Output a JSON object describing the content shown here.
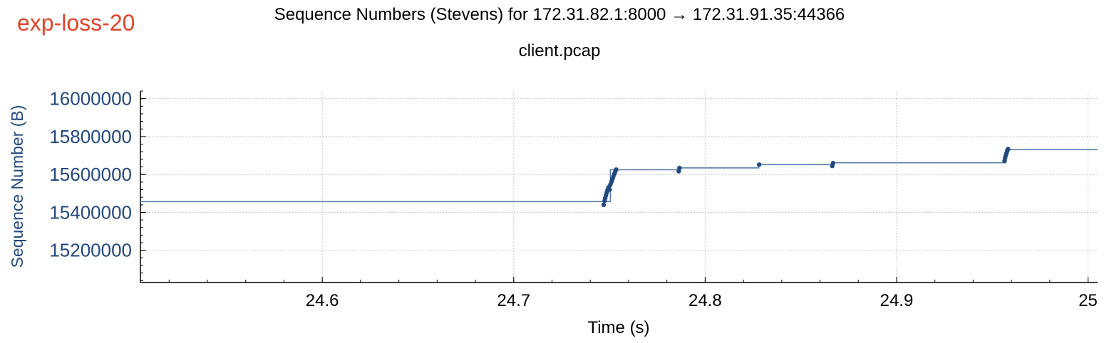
{
  "tag": "exp-loss-20",
  "chart_data": {
    "type": "scatter",
    "title": "Sequence Numbers (Stevens) for 172.31.82.1:8000 → 172.31.91.35:44366",
    "subtitle": "client.pcap",
    "xlabel": "Time (s)",
    "ylabel": "Sequence Number (B)",
    "xlim": [
      24.505,
      25.005
    ],
    "ylim": [
      15030000,
      16040000
    ],
    "x_ticks": [
      24.6,
      24.7,
      24.8,
      24.9,
      25
    ],
    "x_tick_labels": [
      "24.6",
      "24.7",
      "24.8",
      "24.9",
      "25"
    ],
    "y_ticks": [
      15200000,
      15400000,
      15600000,
      15800000,
      16000000
    ],
    "y_tick_labels": [
      "15200000",
      "15400000",
      "15600000",
      "15800000",
      "16000000"
    ],
    "grid": true,
    "colors": {
      "series": "#22497f",
      "step_line": "#5b7faf",
      "axis_text": "#22497f",
      "tag": "#e0442a",
      "grid": "#c8c8c8"
    },
    "step_line": [
      [
        24.505,
        15457000
      ],
      [
        24.7505,
        15457000
      ],
      [
        24.7505,
        15625000
      ],
      [
        24.7865,
        15625000
      ],
      [
        24.7865,
        15635000
      ],
      [
        24.828,
        15635000
      ],
      [
        24.828,
        15652000
      ],
      [
        24.8665,
        15652000
      ],
      [
        24.8665,
        15662000
      ],
      [
        24.957,
        15662000
      ],
      [
        24.957,
        15731000
      ],
      [
        25.005,
        15731000
      ]
    ],
    "points": [
      {
        "x": 24.747,
        "y": 15440000
      },
      {
        "x": 24.7475,
        "y": 15462000
      },
      {
        "x": 24.7478,
        "y": 15476000
      },
      {
        "x": 24.7482,
        "y": 15490000
      },
      {
        "x": 24.7486,
        "y": 15505000
      },
      {
        "x": 24.749,
        "y": 15518000
      },
      {
        "x": 24.7495,
        "y": 15532000
      },
      {
        "x": 24.7501,
        "y": 15520000
      },
      {
        "x": 24.7505,
        "y": 15546000
      },
      {
        "x": 24.751,
        "y": 15560000
      },
      {
        "x": 24.7515,
        "y": 15574000
      },
      {
        "x": 24.752,
        "y": 15588000
      },
      {
        "x": 24.7525,
        "y": 15602000
      },
      {
        "x": 24.753,
        "y": 15614000
      },
      {
        "x": 24.7535,
        "y": 15626000
      },
      {
        "x": 24.7862,
        "y": 15617000
      },
      {
        "x": 24.7866,
        "y": 15634000
      },
      {
        "x": 24.8282,
        "y": 15652000
      },
      {
        "x": 24.8664,
        "y": 15645000
      },
      {
        "x": 24.8668,
        "y": 15660000
      },
      {
        "x": 24.9564,
        "y": 15672000
      },
      {
        "x": 24.9567,
        "y": 15688000
      },
      {
        "x": 24.957,
        "y": 15700000
      },
      {
        "x": 24.9574,
        "y": 15712000
      },
      {
        "x": 24.9578,
        "y": 15724000
      },
      {
        "x": 24.9582,
        "y": 15734000
      }
    ]
  }
}
